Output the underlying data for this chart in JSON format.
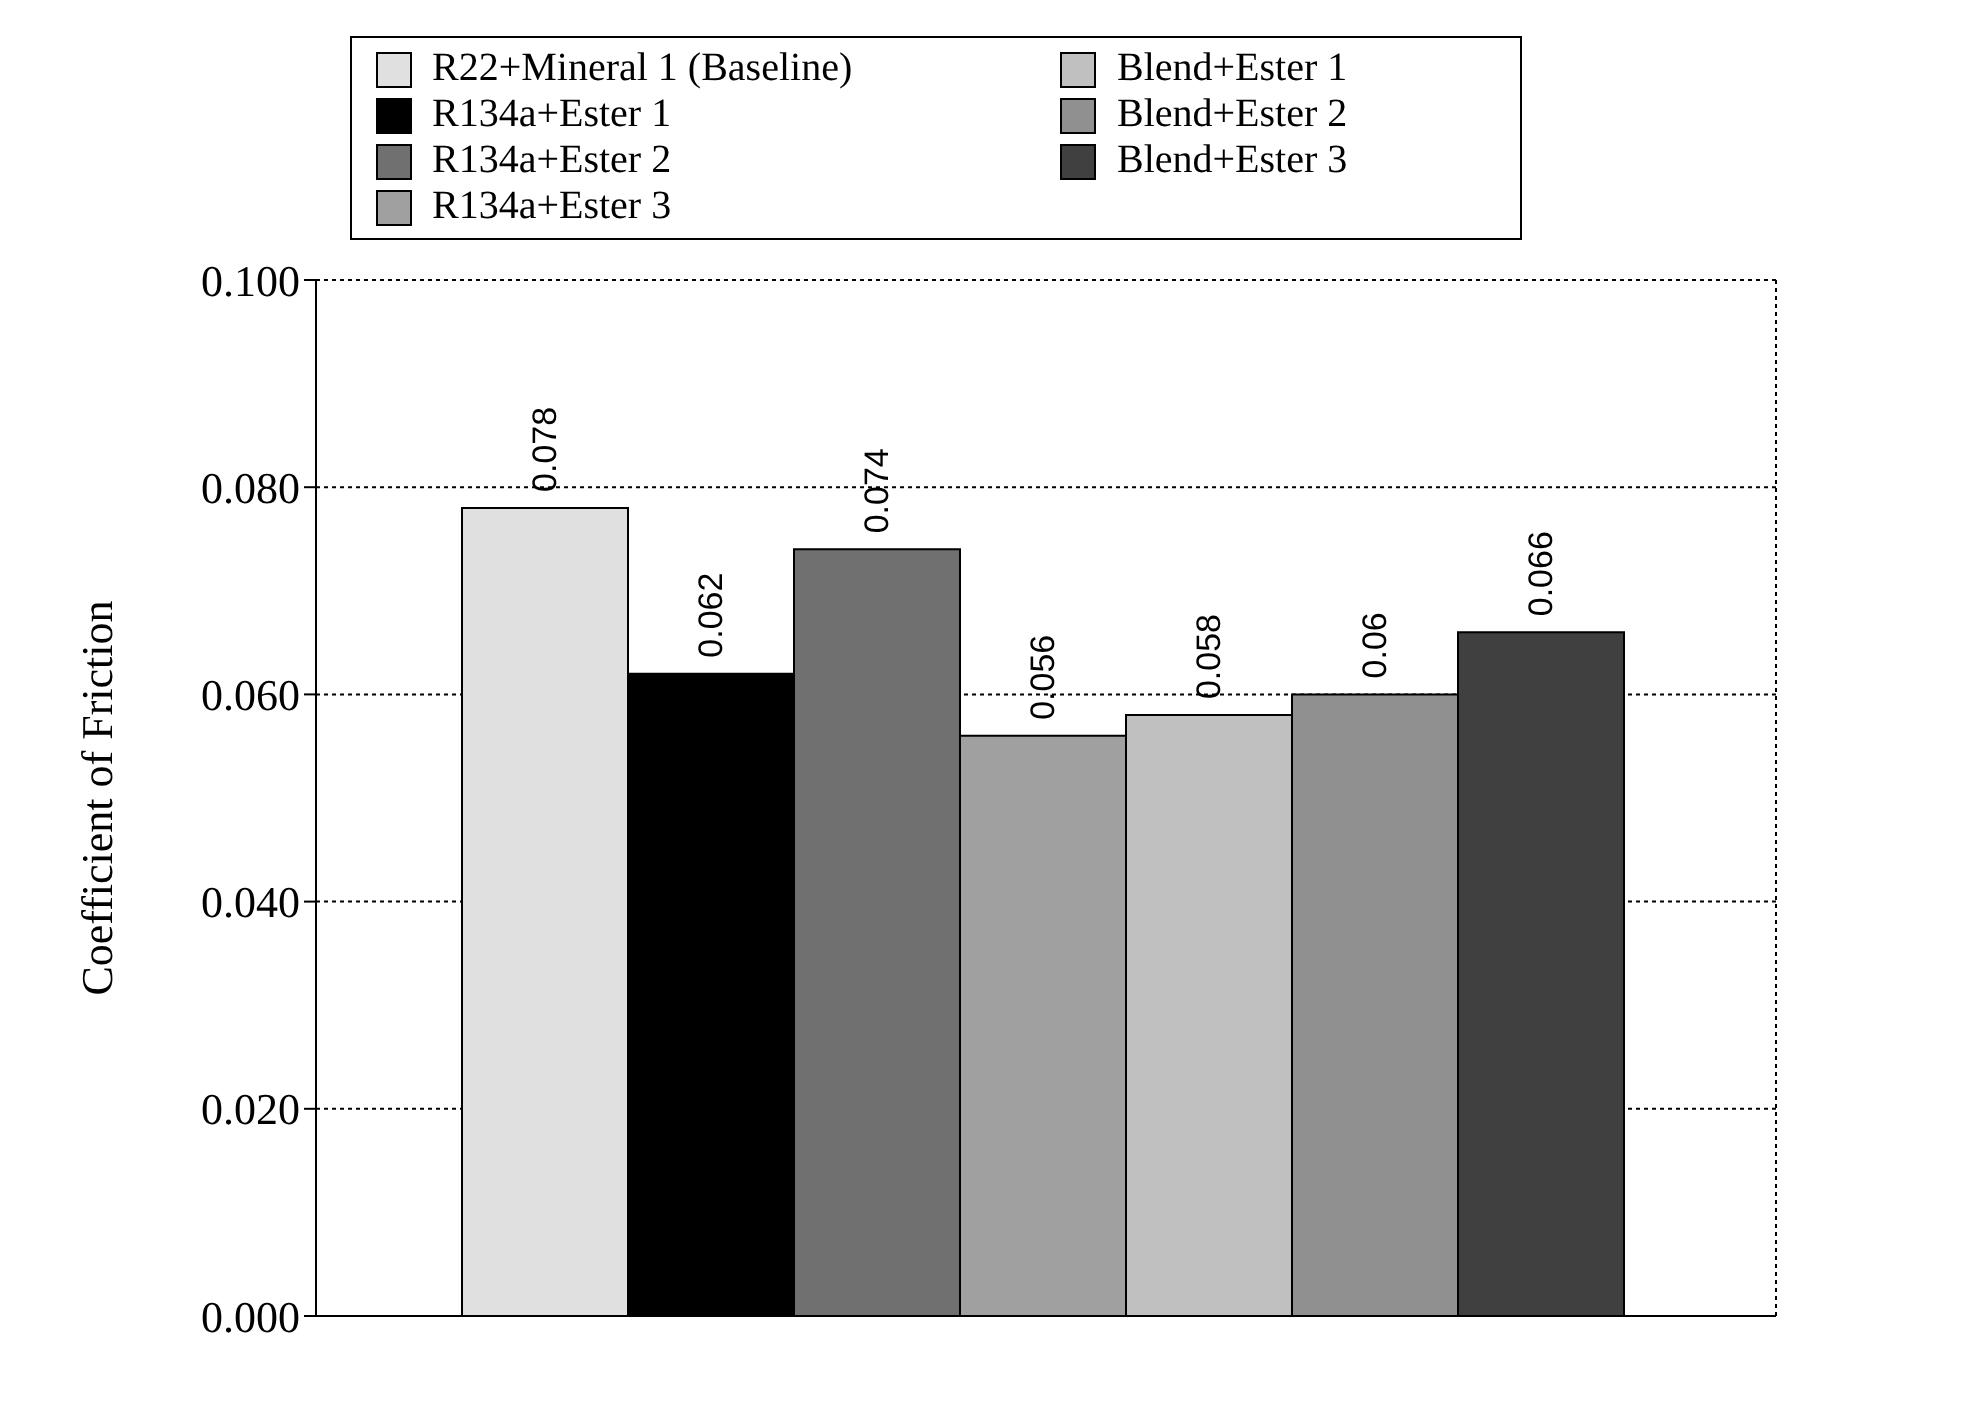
{
  "chart_data": {
    "type": "bar",
    "ylabel": "Coefficient of Friction",
    "categories": [
      null
    ],
    "series": [
      {
        "name": "R22+Mineral 1 (Baseline)",
        "color": "#e0e0e0",
        "values": [
          0.078
        ],
        "value_labels": [
          "0.078"
        ]
      },
      {
        "name": "R134a+Ester 1",
        "color": "#000000",
        "values": [
          0.062
        ],
        "value_labels": [
          "0.062"
        ]
      },
      {
        "name": "R134a+Ester 2",
        "color": "#707070",
        "values": [
          0.074
        ],
        "value_labels": [
          "0.074"
        ]
      },
      {
        "name": "R134a+Ester 3",
        "color": "#a0a0a0",
        "values": [
          0.056
        ],
        "value_labels": [
          "0.056"
        ]
      },
      {
        "name": "Blend+Ester 1",
        "color": "#c0c0c0",
        "values": [
          0.058
        ],
        "value_labels": [
          "0.058"
        ]
      },
      {
        "name": "Blend+Ester 2",
        "color": "#909090",
        "values": [
          0.06
        ],
        "value_labels": [
          "0.06"
        ]
      },
      {
        "name": "Blend+Ester 3",
        "color": "#404040",
        "values": [
          0.066
        ],
        "value_labels": [
          "0.066"
        ]
      }
    ],
    "ylim": [
      0,
      0.1
    ],
    "yticks": [
      {
        "value": 0,
        "label": "0.000"
      },
      {
        "value": 0.02,
        "label": "0.020"
      },
      {
        "value": 0.04,
        "label": "0.040"
      },
      {
        "value": 0.06,
        "label": "0.060"
      },
      {
        "value": 0.08,
        "label": "0.080"
      },
      {
        "value": 0.1,
        "label": "0.100"
      }
    ],
    "grid": true,
    "legend": "top",
    "tick_labels": "y"
  }
}
